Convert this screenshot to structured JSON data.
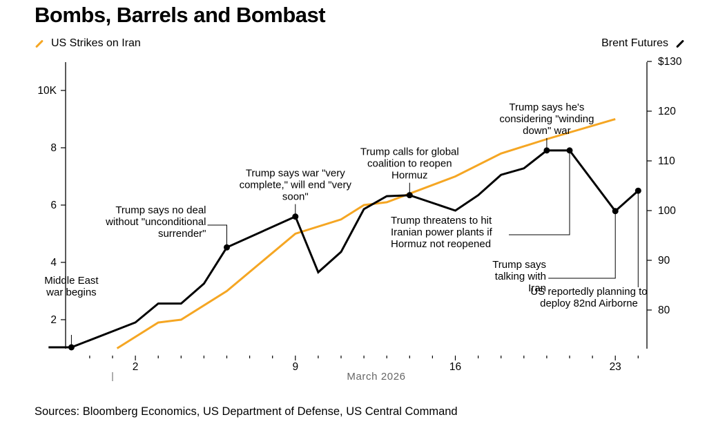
{
  "title": "Bombs, Barrels and Bombast",
  "legend": {
    "left": {
      "label": "US Strikes on Iran",
      "color": "#f5a623"
    },
    "right": {
      "label": "Brent Futures",
      "color": "#000000"
    }
  },
  "source": "Sources: Bloomberg Economics, US Department of Defense, US Central Command",
  "chart_data": {
    "type": "line",
    "title": "Bombs, Barrels and Bombast",
    "xlabel": "March 2026",
    "x_unit": "day of March 2026 (0 = Feb 28, negative = February)",
    "x_range": [
      -1.2,
      24.5
    ],
    "x_ticks": [
      0,
      1,
      2,
      3,
      4,
      5,
      6,
      7,
      8,
      9,
      10,
      11,
      12,
      13,
      14,
      15,
      16,
      17,
      18,
      19,
      20,
      21,
      22,
      23,
      24
    ],
    "x_tick_labels": [
      {
        "x": 2,
        "label": "2"
      },
      {
        "x": 9,
        "label": "9"
      },
      {
        "x": 16,
        "label": "16"
      },
      {
        "x": 23,
        "label": "23"
      }
    ],
    "y_left": {
      "label": "US Strikes on Iran",
      "range": [
        1,
        11
      ],
      "ticks": [
        2,
        4,
        6,
        8,
        10
      ],
      "tick_labels": [
        "2",
        "4",
        "6",
        "8",
        "10K"
      ]
    },
    "y_right": {
      "label": "Brent Futures",
      "range": [
        72.4,
        130
      ],
      "ticks": [
        80,
        90,
        100,
        110,
        120,
        130
      ],
      "tick_labels": [
        "80",
        "90",
        "100",
        "110",
        "120",
        "$130"
      ]
    },
    "grid": false,
    "legend_position": "top",
    "series": [
      {
        "name": "US Strikes on Iran",
        "axis": "left",
        "color": "#f5a623",
        "unit": "thousands",
        "points": [
          [
            1.2,
            1.0
          ],
          [
            3,
            1.9
          ],
          [
            4,
            2.0
          ],
          [
            6,
            3.0
          ],
          [
            9,
            5.0
          ],
          [
            11,
            5.5
          ],
          [
            12,
            6.0
          ],
          [
            13,
            6.1
          ],
          [
            16,
            7.0
          ],
          [
            18,
            7.8
          ],
          [
            20,
            8.3
          ],
          [
            23,
            9.0
          ]
        ]
      },
      {
        "name": "Brent Futures",
        "axis": "right",
        "color": "#000000",
        "unit": "USD per barrel",
        "points": [
          [
            -1.8,
            72.5
          ],
          [
            -0.8,
            72.5
          ],
          [
            2,
            77.5
          ],
          [
            3,
            81.3
          ],
          [
            4,
            81.3
          ],
          [
            5,
            85.3
          ],
          [
            6,
            92.6
          ],
          [
            9,
            98.8
          ],
          [
            10,
            87.6
          ],
          [
            11,
            91.7
          ],
          [
            12,
            100.3
          ],
          [
            13,
            102.9
          ],
          [
            14,
            103.1
          ],
          [
            16,
            100.0
          ],
          [
            17,
            103.1
          ],
          [
            18,
            107.2
          ],
          [
            19,
            108.5
          ],
          [
            20,
            112.1
          ],
          [
            21,
            112.1
          ],
          [
            23,
            99.9
          ],
          [
            24,
            104.0
          ]
        ]
      }
    ],
    "annotations": [
      {
        "x": -0.8,
        "y": 72.5,
        "lines": [
          "Middle East",
          "war begins"
        ],
        "align": "middle",
        "dir": "up"
      },
      {
        "x": 6,
        "y": 92.6,
        "lines": [
          "Trump says no deal",
          "without \"unconditional",
          "surrender\""
        ],
        "align": "end",
        "dir": "elbow-left"
      },
      {
        "x": 9,
        "y": 98.8,
        "lines": [
          "Trump says war \"very",
          "complete,\" will end \"very",
          "soon\""
        ],
        "align": "middle",
        "dir": "up"
      },
      {
        "x": 14,
        "y": 103.1,
        "lines": [
          "Trump calls for global",
          "coalition to reopen",
          "Hormuz"
        ],
        "align": "middle",
        "dir": "up"
      },
      {
        "x": 20,
        "y": 112.1,
        "lines": [
          "Trump says he's",
          "considering \"winding",
          "down\" war"
        ],
        "align": "middle",
        "dir": "up"
      },
      {
        "x": 21,
        "y": 112.1,
        "lines": [
          "Trump threatens to hit",
          "Iranian power plants if",
          "Hormuz not reopened"
        ],
        "align": "start",
        "dir": "elbow-down-left"
      },
      {
        "x": 23,
        "y": 99.9,
        "lines": [
          "Trump says",
          "talking with",
          "Iran"
        ],
        "align": "end",
        "dir": "elbow-down-left"
      },
      {
        "x": 24,
        "y": 104.0,
        "lines": [
          "US reportedly planning to",
          "deploy 82nd Airborne"
        ],
        "align": "middle",
        "dir": "down"
      }
    ]
  }
}
